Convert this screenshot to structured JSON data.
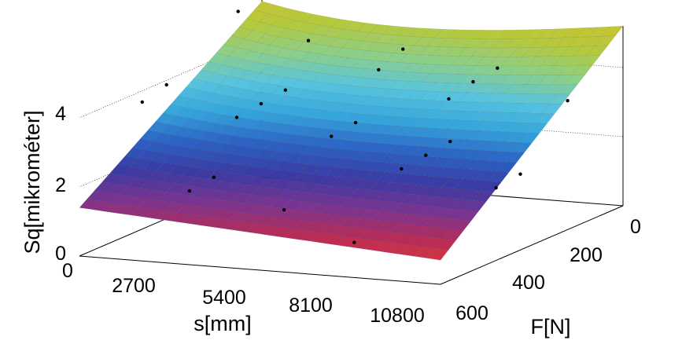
{
  "chart_data": {
    "type": "surface3d",
    "zlabel": "Sq[mikrométer]",
    "xlabel": "s[mm]",
    "ylabel": "F[N]",
    "x_ticks": [
      "0",
      "2700",
      "5400",
      "8100",
      "10800"
    ],
    "y_ticks": [
      "0",
      "200",
      "400",
      "600"
    ],
    "z_ticks": [
      "0",
      "2",
      "4"
    ],
    "xlim": [
      0,
      10800
    ],
    "ylim": [
      0,
      600
    ],
    "zlim": [
      0,
      5.2
    ],
    "grid": true,
    "colormap": [
      "#d41f28",
      "#e33b3b",
      "#b92c55",
      "#7a3490",
      "#3a3aa3",
      "#2b62c4",
      "#35a6dc",
      "#57c4e0",
      "#8ccf8a",
      "#b5c93d",
      "#c7c431"
    ],
    "surface_corner_values": [
      {
        "s": 0,
        "F": 0,
        "Sq": 3.9
      },
      {
        "s": 0,
        "F": 600,
        "Sq": 1.4
      },
      {
        "s": 10800,
        "F": 600,
        "Sq": 0.7
      },
      {
        "s": 10800,
        "F": 0,
        "Sq": 5.2
      }
    ],
    "measured_points_sq": [
      5.1,
      5.0,
      4.9,
      4.8,
      4.6,
      4.5,
      4.3,
      4.1,
      3.9,
      3.7,
      3.5,
      3.3,
      3.1,
      2.9,
      2.7,
      2.5,
      2.3,
      2.1,
      1.9,
      1.7,
      1.5,
      1.3,
      1.1,
      0.9
    ]
  }
}
